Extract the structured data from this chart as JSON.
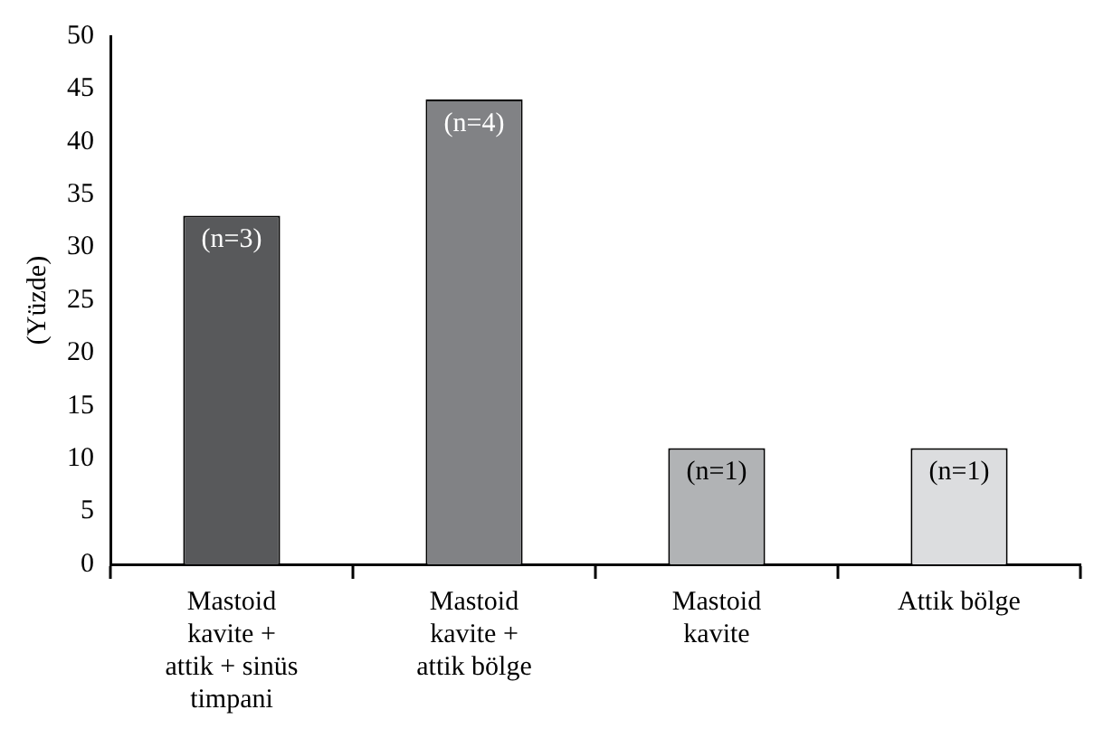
{
  "chart_data": {
    "type": "bar",
    "ylabel": "(Yüzde)",
    "categories": [
      "Mastoid kavite + attik + sinüs timpani",
      "Mastoid kavite + attik bölge",
      "Mastoid kavite",
      "Attik bölge"
    ],
    "values": [
      33,
      44,
      11,
      11
    ],
    "colors": [
      "#58595b",
      "#818285",
      "#b1b3b5",
      "#dcdddf"
    ],
    "annotations": [
      {
        "text": "(n=3)",
        "x": "Mastoid kavite + attik + sinüs timpani",
        "y": 33
      },
      {
        "text": "(n=4)",
        "x": "Mastoid kavite + attik bölge",
        "y": 44
      },
      {
        "text": "(n=1)",
        "x": "Mastoid kavite",
        "y": 11
      },
      {
        "text": "(n=1)",
        "x": "Attik bölge",
        "y": 11
      }
    ],
    "ylim": [
      0,
      50
    ],
    "yticks": [
      0,
      5,
      10,
      15,
      20,
      25,
      30,
      35,
      40,
      45,
      50
    ],
    "grid": false,
    "legend": false
  }
}
